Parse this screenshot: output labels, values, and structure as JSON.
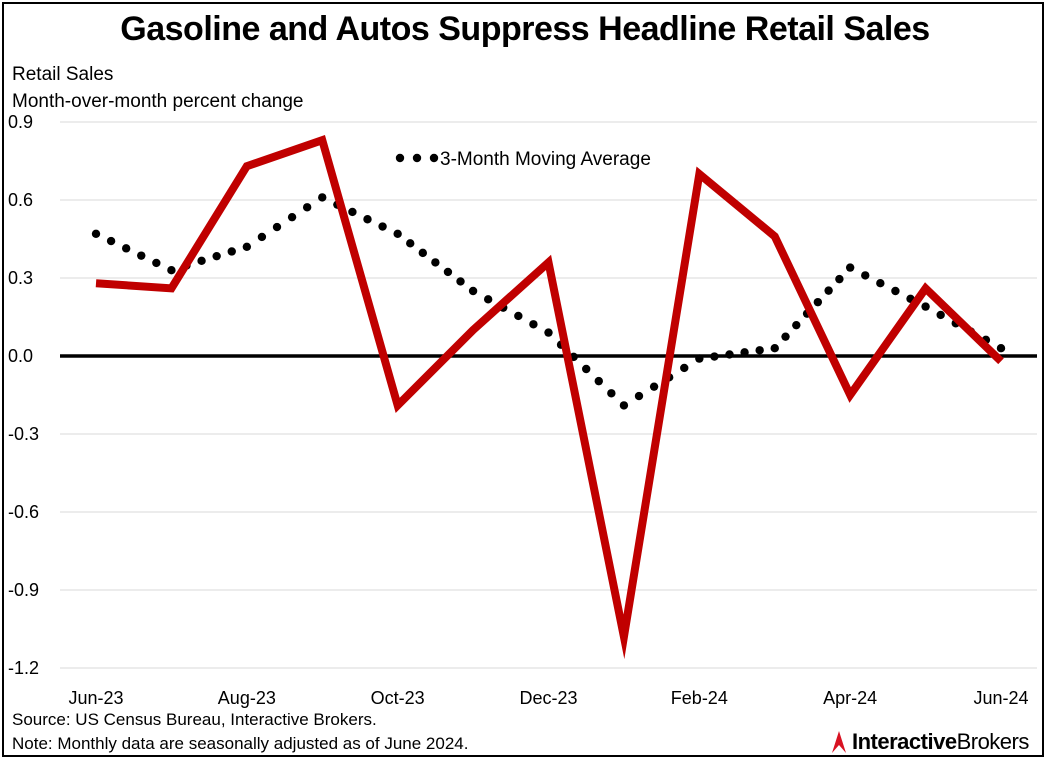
{
  "title": "Gasoline and Autos Suppress Headline Retail Sales",
  "ylabel_line1": "Retail Sales",
  "ylabel_line2": "Month-over-month percent change",
  "source": "Source: US Census Bureau, Interactive Brokers.",
  "note": "Note: Monthly data are seasonally adjusted as of June 2024.",
  "logo": {
    "part1": "Interactive",
    "part2": "Brokers",
    "brand_color": "#d81222"
  },
  "chart_data": {
    "type": "line",
    "title": "Gasoline and Autos Suppress Headline Retail Sales",
    "xlabel": "",
    "ylabel": "Month-over-month percent change",
    "ylim": [
      -1.2,
      0.9
    ],
    "yticks": [
      0.9,
      0.6,
      0.3,
      0.0,
      -0.3,
      -0.6,
      -0.9,
      -1.2
    ],
    "ytick_labels": [
      "0.9",
      "0.6",
      "0.3",
      "0.0",
      "-0.3",
      "-0.6",
      "-0.9",
      "-1.2"
    ],
    "categories": [
      "Jun-23",
      "Jul-23",
      "Aug-23",
      "Sep-23",
      "Oct-23",
      "Nov-23",
      "Dec-23",
      "Jan-24",
      "Feb-24",
      "Mar-24",
      "Apr-24",
      "May-24",
      "Jun-24"
    ],
    "xtick_labels": [
      "Jun-23",
      "",
      "Aug-23",
      "",
      "Oct-23",
      "",
      "Dec-23",
      "",
      "Feb-24",
      "",
      "Apr-24",
      "",
      "Jun-24"
    ],
    "grid": true,
    "series": [
      {
        "name": "Retail Sales",
        "style": "solid",
        "color": "#c00000",
        "values": [
          0.28,
          0.26,
          0.73,
          0.83,
          -0.19,
          0.1,
          0.36,
          -1.08,
          0.7,
          0.46,
          -0.15,
          0.26,
          -0.02
        ]
      },
      {
        "name": "3-Month Moving Average",
        "style": "dotted",
        "color": "#000000",
        "values": [
          0.47,
          0.33,
          0.42,
          0.61,
          0.47,
          0.25,
          0.09,
          -0.19,
          -0.01,
          0.03,
          0.34,
          0.19,
          0.03
        ]
      }
    ],
    "legend": {
      "label": "3-Month Moving Average",
      "placement": "top-center"
    }
  }
}
